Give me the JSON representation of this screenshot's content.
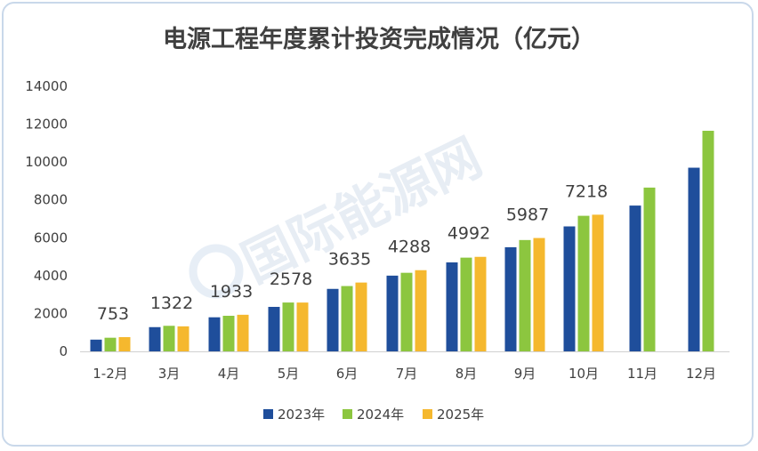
{
  "chart_data": {
    "type": "bar",
    "title": "电源工程年度累计投资完成情况（亿元）",
    "categories": [
      "1-2月",
      "3月",
      "4月",
      "5月",
      "6月",
      "7月",
      "8月",
      "9月",
      "10月",
      "11月",
      "12月"
    ],
    "series": [
      {
        "name": "2023年",
        "color": "#1f4e9b",
        "values": [
          620,
          1280,
          1800,
          2350,
          3300,
          4000,
          4700,
          5500,
          6600,
          7700,
          9700
        ]
      },
      {
        "name": "2024年",
        "color": "#8cc63f",
        "values": [
          720,
          1350,
          1880,
          2580,
          3450,
          4150,
          4950,
          5880,
          7160,
          8650,
          11650
        ]
      },
      {
        "name": "2025年",
        "color": "#f5b82e",
        "values": [
          753,
          1322,
          1933,
          2578,
          3635,
          4288,
          4992,
          5987,
          7218,
          null,
          null
        ]
      }
    ],
    "data_labels": [
      "753",
      "1322",
      "1933",
      "2578",
      "3635",
      "4288",
      "4992",
      "5987",
      "7218"
    ],
    "yticks": [
      0,
      2000,
      4000,
      6000,
      8000,
      10000,
      12000,
      14000
    ],
    "ylim": [
      0,
      14000
    ],
    "legend": "bottom",
    "grid": false,
    "watermark": "国际能源网"
  }
}
